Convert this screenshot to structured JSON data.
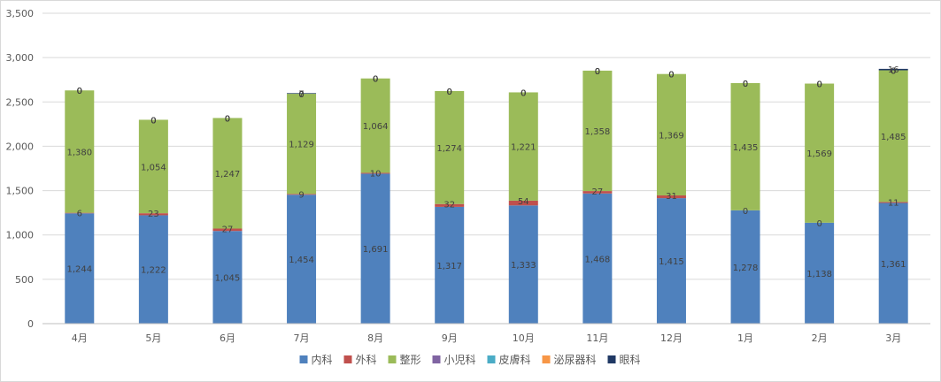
{
  "chart_data": {
    "type": "bar",
    "stacked": true,
    "title": "",
    "xlabel": "",
    "ylabel": "",
    "ylim": [
      0,
      3500
    ],
    "yticks": [
      0,
      500,
      1000,
      1500,
      2000,
      2500,
      3000,
      3500
    ],
    "ytick_labels": [
      "0",
      "500",
      "1,000",
      "1,500",
      "2,000",
      "2,500",
      "3,000",
      "3,500"
    ],
    "grid": true,
    "legend_position": "bottom",
    "categories": [
      "4月",
      "5月",
      "6月",
      "7月",
      "8月",
      "9月",
      "10月",
      "11月",
      "12月",
      "1月",
      "2月",
      "3月"
    ],
    "series": [
      {
        "name": "内科",
        "color": "#4f81bd",
        "values": [
          1244,
          1222,
          1045,
          1454,
          1691,
          1317,
          1333,
          1468,
          1415,
          1278,
          1138,
          1361
        ],
        "labels": [
          "1,244",
          "1,222",
          "1,045",
          "1,454",
          "1,691",
          "1,317",
          "1,333",
          "1,468",
          "1,415",
          "1,278",
          "1,138",
          "1,361"
        ]
      },
      {
        "name": "外科",
        "color": "#c0504d",
        "values": [
          6,
          23,
          27,
          9,
          10,
          32,
          54,
          27,
          31,
          0,
          0,
          11
        ],
        "labels": [
          "6",
          "23",
          "27",
          "9",
          "10",
          "32",
          "54",
          "27",
          "31",
          "0",
          "0",
          "11"
        ]
      },
      {
        "name": "整形",
        "color": "#9bbb59",
        "values": [
          1380,
          1054,
          1247,
          1129,
          1064,
          1274,
          1221,
          1358,
          1369,
          1435,
          1569,
          1485
        ],
        "labels": [
          "1,380",
          "1,054",
          "1,247",
          "1,129",
          "1,064",
          "1,274",
          "1,221",
          "1,358",
          "1,369",
          "1,435",
          "1,569",
          "1,485"
        ]
      },
      {
        "name": "小児科",
        "color": "#8064a2",
        "values": [
          0,
          0,
          0,
          0,
          0,
          0,
          0,
          0,
          0,
          0,
          0,
          0
        ],
        "labels": [
          "0",
          "0",
          "0",
          "0",
          "0",
          "0",
          "0",
          "0",
          "0",
          "0",
          "0",
          "0"
        ]
      },
      {
        "name": "皮膚科",
        "color": "#4bacc6",
        "values": [
          0,
          0,
          0,
          0,
          0,
          0,
          0,
          0,
          0,
          0,
          0,
          0
        ],
        "labels": [
          "0",
          "0",
          "0",
          "0",
          "0",
          "0",
          "0",
          "0",
          "0",
          "0",
          "0",
          "0"
        ]
      },
      {
        "name": "泌尿器科",
        "color": "#f79646",
        "values": [
          0,
          0,
          0,
          0,
          0,
          0,
          0,
          0,
          0,
          0,
          0,
          0
        ],
        "labels": [
          "0",
          "0",
          "0",
          "0",
          "0",
          "0",
          "0",
          "0",
          "0",
          "0",
          "0",
          "0"
        ]
      },
      {
        "name": "眼科",
        "color": "#1f3864",
        "values": [
          0,
          0,
          0,
          7,
          0,
          0,
          0,
          0,
          0,
          0,
          0,
          16
        ],
        "labels": [
          "0",
          "0",
          "0",
          "7",
          "0",
          "0",
          "0",
          "0",
          "0",
          "0",
          "0",
          "16"
        ]
      }
    ]
  }
}
